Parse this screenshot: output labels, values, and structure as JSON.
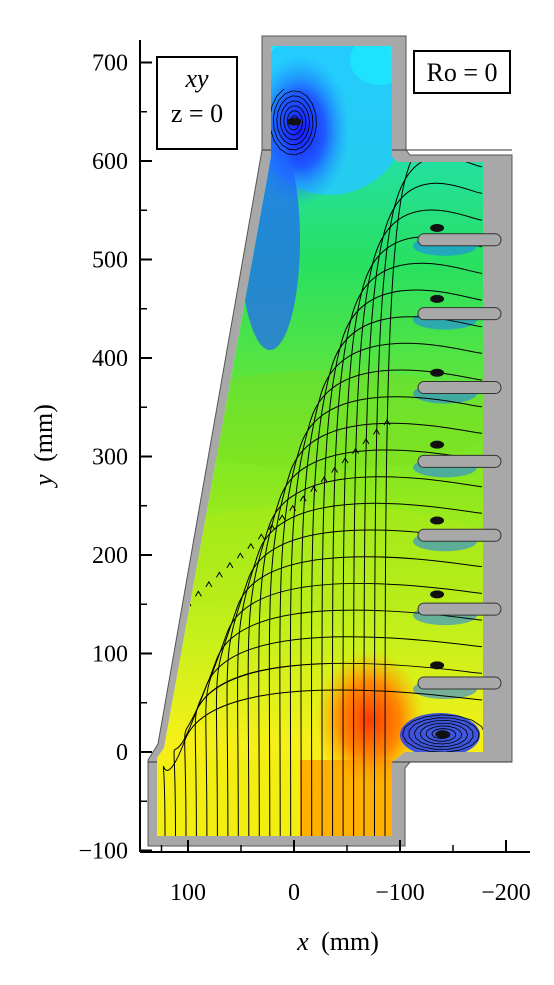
{
  "chart_data": {
    "type": "contour",
    "xlabel_var": "x",
    "xlabel_unit": "(mm)",
    "ylabel_var": "y",
    "ylabel_unit": "(mm)",
    "x_axis_reversed": true,
    "xlim": [
      145,
      -225
    ],
    "ylim": [
      -100,
      725
    ],
    "xticks": [
      {
        "value": 100,
        "label": "100"
      },
      {
        "value": 0,
        "label": "0"
      },
      {
        "value": -100,
        "label": "−100"
      },
      {
        "value": -200,
        "label": "−200"
      }
    ],
    "yticks": [
      {
        "value": -100,
        "label": "−100"
      },
      {
        "value": 0,
        "label": "0"
      },
      {
        "value": 100,
        "label": "100"
      },
      {
        "value": 200,
        "label": "200"
      },
      {
        "value": 300,
        "label": "300"
      },
      {
        "value": 400,
        "label": "400"
      },
      {
        "value": 500,
        "label": "500"
      },
      {
        "value": 600,
        "label": "600"
      },
      {
        "value": 700,
        "label": "700"
      }
    ],
    "annotations": {
      "plane_var": "xy",
      "plane_eq": "z = 0",
      "rossby": "Ro = 0"
    },
    "geometry_outline": [
      [
        138,
        -85
      ],
      [
        138,
        -10
      ],
      [
        125,
        0
      ],
      [
        27,
        610
      ],
      [
        27,
        720
      ],
      [
        -105,
        720
      ],
      [
        -105,
        610
      ],
      [
        -210,
        610
      ],
      [
        -210,
        -10
      ],
      [
        -105,
        -10
      ],
      [
        -105,
        -85
      ],
      [
        138,
        -85
      ]
    ],
    "cooling_slots_y": [
      520,
      445,
      370,
      295,
      220,
      145,
      70
    ],
    "vortex_centers": [
      {
        "x": 0,
        "y": 640
      },
      {
        "x": -140,
        "y": 18
      },
      {
        "x": -135,
        "y": 312
      },
      {
        "x": -135,
        "y": 532
      },
      {
        "x": -135,
        "y": 460
      },
      {
        "x": -135,
        "y": 385
      },
      {
        "x": -135,
        "y": 235
      },
      {
        "x": -135,
        "y": 160
      },
      {
        "x": -135,
        "y": 88
      }
    ],
    "grid": false
  }
}
